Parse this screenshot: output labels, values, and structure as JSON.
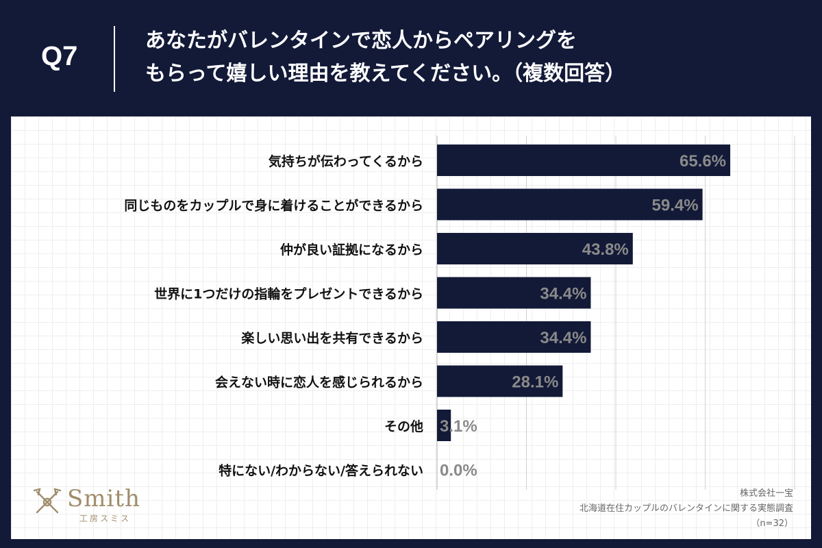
{
  "header": {
    "question_number": "Q7",
    "title_line1": "あなたがバレンタインで恋人からペアリングを",
    "title_line2": "もらって嬉しい理由を教えてください。（複数回答）"
  },
  "chart_data": {
    "type": "bar",
    "orientation": "horizontal",
    "categories": [
      "気持ちが伝わってくるから",
      "同じものをカップルで身に着けることができるから",
      "仲が良い証拠になるから",
      "世界に1つだけの指輪をプレゼントできるから",
      "楽しい思い出を共有できるから",
      "会えない時に恋人を感じられるから",
      "その他",
      "特にない/わからない/答えられない"
    ],
    "values": [
      65.6,
      59.4,
      43.8,
      34.4,
      34.4,
      28.1,
      3.1,
      0.0
    ],
    "value_labels": [
      "65.6%",
      "59.4%",
      "43.8%",
      "34.4%",
      "34.4%",
      "28.1%",
      "3.1%",
      "0.0%"
    ],
    "xlim": [
      0,
      80
    ],
    "grid": true,
    "bar_color": "#131a38",
    "label_color": "#8a8a8a"
  },
  "logo": {
    "wordmark": "Smith",
    "subtitle": "工房スミス",
    "color": "#a08d6a"
  },
  "source": {
    "company": "株式会社一宝",
    "survey": "北海道在住カップルのバレンタインに関する実態調査",
    "sample": "（n=32）"
  }
}
